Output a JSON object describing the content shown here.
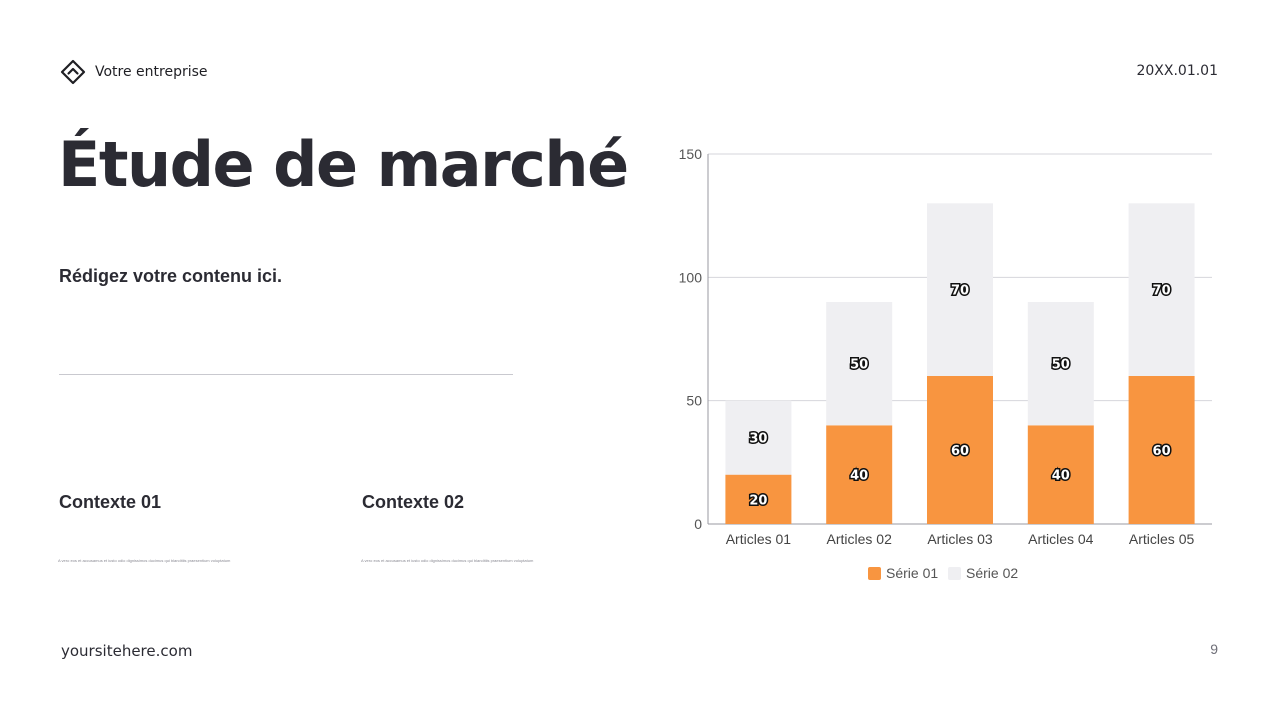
{
  "header": {
    "company": "Votre entreprise",
    "date": "20XX.01.01",
    "logo_icon": "diamond-house-icon"
  },
  "main": {
    "title": "Étude de marché",
    "subtitle": "Rédigez votre contenu ici.",
    "contexts": [
      {
        "title": "Contexte 01",
        "text": "A vero eos et accusamus et iusto odio dignissimos ducimus qui blanditiis praesentium voluptatum"
      },
      {
        "title": "Contexte 02",
        "text": "A vero eos et accusamus et iusto odio dignissimos ducimus qui blanditiis praesentium voluptatum"
      }
    ]
  },
  "footer": {
    "site": "yoursitehere.com",
    "page": "9"
  },
  "chart_data": {
    "type": "bar",
    "stacked": true,
    "categories": [
      "Articles 01",
      "Articles 02",
      "Articles 03",
      "Articles 04",
      "Articles 05"
    ],
    "series": [
      {
        "name": "Série 01",
        "values": [
          20,
          40,
          60,
          40,
          60
        ],
        "color": "#f89540"
      },
      {
        "name": "Série 02",
        "values": [
          30,
          50,
          70,
          50,
          70
        ],
        "color": "#efeff2"
      }
    ],
    "ylim": [
      0,
      150
    ],
    "yticks": [
      0,
      50,
      100,
      150
    ],
    "grid": true,
    "legend": "bottom"
  }
}
